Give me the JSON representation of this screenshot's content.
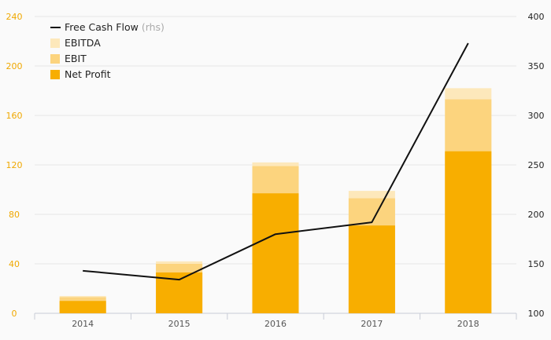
{
  "chart_data": {
    "type": "bar",
    "categories": [
      "2014",
      "2015",
      "2016",
      "2017",
      "2018"
    ],
    "series": [
      {
        "name": "Net Profit",
        "kind": "bar",
        "axis": "left",
        "color": "#f8ae00",
        "values": [
          10,
          33,
          97,
          71,
          131
        ]
      },
      {
        "name": "EBIT",
        "kind": "bar",
        "axis": "left",
        "color": "#fcd47e",
        "values": [
          13,
          40,
          119,
          93,
          173
        ]
      },
      {
        "name": "EBITDA",
        "kind": "bar",
        "axis": "left",
        "color": "#fde8bb",
        "values": [
          14,
          42,
          122,
          99,
          182
        ]
      },
      {
        "name": "Free Cash Flow",
        "kind": "line",
        "axis": "right",
        "color": "#111111",
        "values": [
          143,
          134,
          180,
          192,
          373
        ]
      }
    ],
    "left_axis": {
      "ticks": [
        "0",
        "40",
        "80",
        "120",
        "160",
        "200",
        "240"
      ],
      "range": [
        0,
        240
      ],
      "color": "#f0a800"
    },
    "right_axis": {
      "ticks": [
        "100",
        "150",
        "200",
        "250",
        "300",
        "350",
        "400"
      ],
      "range": [
        100,
        400
      ],
      "color": "#222222"
    },
    "legend": {
      "placement": "top-left",
      "items": [
        {
          "label": "Free Cash Flow",
          "suffix": "(rhs)",
          "marker": "line",
          "color": "#111111"
        },
        {
          "label": "EBITDA",
          "marker": "square",
          "color": "#fde8bb"
        },
        {
          "label": "EBIT",
          "marker": "square",
          "color": "#fcd47e"
        },
        {
          "label": "Net Profit",
          "marker": "square",
          "color": "#f8ae00"
        }
      ]
    },
    "grid": true
  }
}
